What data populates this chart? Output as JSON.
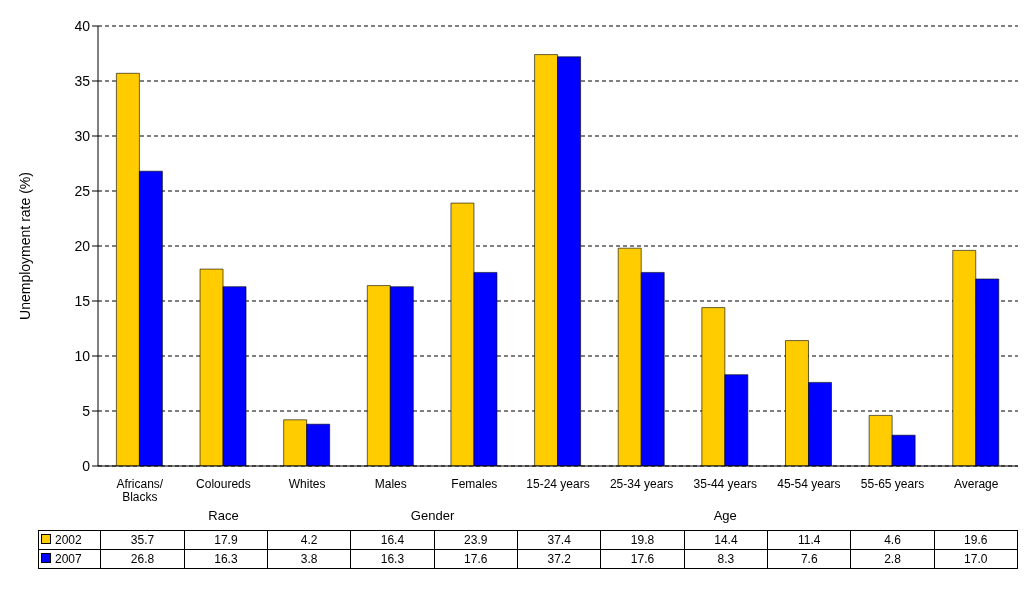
{
  "chart_data": {
    "type": "bar",
    "ylabel": "Unemployment rate (%)",
    "categories": [
      "Africans/ Blacks",
      "Coloureds",
      "Whites",
      "Males",
      "Females",
      "15-24 years",
      "25-34 years",
      "35-44 years",
      "45-54 years",
      "55-65 years",
      "Average"
    ],
    "series": [
      {
        "name": "2002",
        "color": "#ffcc00",
        "values": [
          35.7,
          17.9,
          4.2,
          16.4,
          23.9,
          37.4,
          19.8,
          14.4,
          11.4,
          4.6,
          19.6
        ],
        "value_labels": [
          "35.7",
          "17.9",
          "4.2",
          "16.4",
          "23.9",
          "37.4",
          "19.8",
          "14.4",
          "11.4",
          "4.6",
          "19.6"
        ]
      },
      {
        "name": "2007",
        "color": "#0000ff",
        "values": [
          26.8,
          16.3,
          3.8,
          16.3,
          17.6,
          37.2,
          17.6,
          8.3,
          7.6,
          2.8,
          17.0
        ],
        "value_labels": [
          "26.8",
          "16.3",
          "3.8",
          "16.3",
          "17.6",
          "37.2",
          "17.6",
          "8.3",
          "7.6",
          "2.8",
          "17.0"
        ]
      }
    ],
    "ylim": [
      0,
      40
    ],
    "yticks": [
      0,
      5,
      10,
      15,
      20,
      25,
      30,
      35,
      40
    ],
    "grid": "y",
    "legend": "bottom",
    "annotations": [
      "Race",
      "Gender",
      "Age"
    ]
  }
}
